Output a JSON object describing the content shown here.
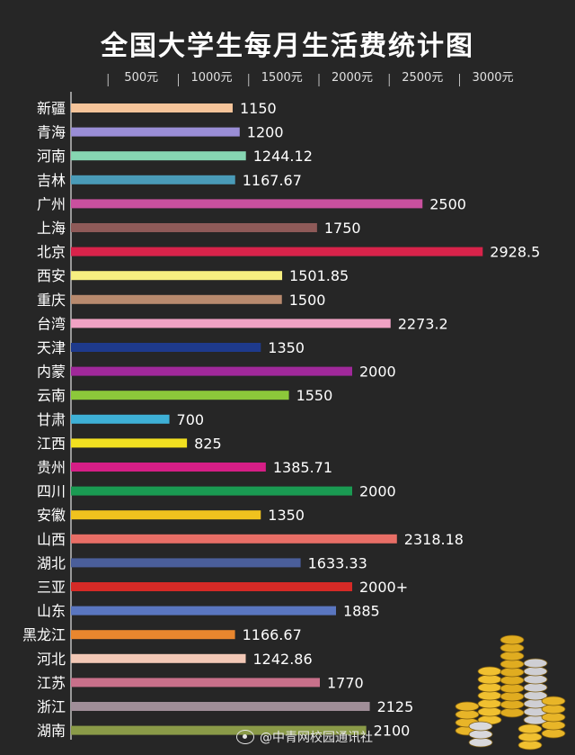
{
  "chart_data": {
    "type": "bar",
    "orientation": "horizontal",
    "title": "全国大学生每月生活费统计图",
    "x_ticks": [
      {
        "value": 500,
        "label": "500元"
      },
      {
        "value": 1000,
        "label": "1000元"
      },
      {
        "value": 1500,
        "label": "1500元"
      },
      {
        "value": 2000,
        "label": "2000元"
      },
      {
        "value": 2500,
        "label": "2500元"
      },
      {
        "value": 3000,
        "label": "3000元"
      }
    ],
    "categories": [
      "新疆",
      "青海",
      "河南",
      "吉林",
      "广州",
      "上海",
      "北京",
      "西安",
      "重庆",
      "台湾",
      "天津",
      "内蒙",
      "云南",
      "甘肃",
      "江西",
      "贵州",
      "四川",
      "安徽",
      "山西",
      "湖北",
      "三亚",
      "山东",
      "黑龙江",
      "河北",
      "江苏",
      "浙江",
      "湖南"
    ],
    "values": [
      1150,
      1200,
      1244.12,
      1167.67,
      2500,
      1750,
      2928.5,
      1501.85,
      1500,
      2273.2,
      1350,
      2000,
      1550,
      700,
      825,
      1385.71,
      2000,
      1350,
      2318.18,
      1633.33,
      2000,
      1885,
      1166.67,
      1242.86,
      1770,
      2125,
      2100
    ],
    "value_labels": [
      "1150",
      "1200",
      "1244.12",
      "1167.67",
      "2500",
      "1750",
      "2928.5",
      "1501.85",
      "1500",
      "2273.2",
      "1350",
      "2000",
      "1550",
      "700",
      "825",
      "1385.71",
      "2000",
      "1350",
      "2318.18",
      "1633.33",
      "2000+",
      "1885",
      "1166.67",
      "1242.86",
      "1770",
      "2125",
      "2100"
    ],
    "colors": [
      "#f5c49a",
      "#9a8ed6",
      "#86d6b2",
      "#4a9bb8",
      "#c9509e",
      "#8e5a58",
      "#d8234a",
      "#f7ef80",
      "#b88a6e",
      "#f0a2c4",
      "#1e3a8c",
      "#a0289a",
      "#8cc83a",
      "#3eb0d6",
      "#f2e020",
      "#d61e86",
      "#1a9a52",
      "#f0c21e",
      "#e86e66",
      "#4a5e9a",
      "#d62a26",
      "#5a76c0",
      "#e8862e",
      "#f2c8b6",
      "#c8708a",
      "#a08e98",
      "#8a9a48"
    ],
    "xlim": [
      0,
      3000
    ]
  },
  "watermark": "@中青网校园通讯社"
}
